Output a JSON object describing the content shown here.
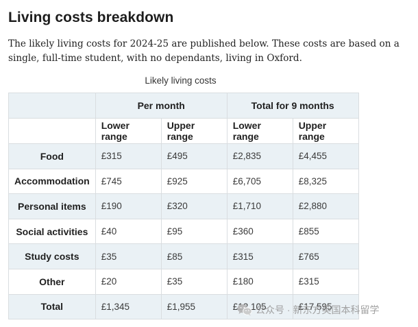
{
  "page": {
    "title": "Living costs breakdown",
    "intro": "The likely living costs for 2024-25 are published below. These costs are based on a single, full-time student, with no dependants, living in Oxford."
  },
  "table": {
    "caption": "Likely living costs",
    "group_headers": [
      "Per month",
      "Total for 9 months"
    ],
    "sub_headers": [
      "Lower range",
      "Upper range",
      "Lower range",
      "Upper range"
    ],
    "rows": [
      {
        "label": "Food",
        "values": [
          "£315",
          "£495",
          "£2,835",
          "£4,455"
        ]
      },
      {
        "label": "Accommodation",
        "values": [
          "£745",
          "£925",
          "£6,705",
          "£8,325"
        ]
      },
      {
        "label": "Personal items",
        "values": [
          "£190",
          "£320",
          "£1,710",
          "£2,880"
        ]
      },
      {
        "label": "Social activities",
        "values": [
          "£40",
          "£95",
          "£360",
          "£855"
        ]
      },
      {
        "label": "Study costs",
        "values": [
          "£35",
          "£85",
          "£315",
          "£765"
        ]
      },
      {
        "label": "Other",
        "values": [
          "£20",
          "£35",
          "£180",
          "£315"
        ]
      },
      {
        "label": "Total",
        "values": [
          "£1,345",
          "£1,955",
          "£12,105",
          "£17,595"
        ]
      }
    ]
  },
  "watermark": {
    "text": "公众号 · 新东方英国本科留学",
    "icon": "wechat-icon"
  }
}
